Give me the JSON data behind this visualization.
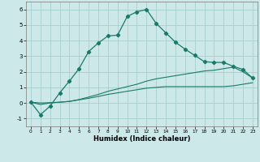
{
  "xlabel": "Humidex (Indice chaleur)",
  "xlim": [
    -0.5,
    23.5
  ],
  "ylim": [
    -1.5,
    6.5
  ],
  "yticks": [
    -1,
    0,
    1,
    2,
    3,
    4,
    5,
    6
  ],
  "xticks": [
    0,
    1,
    2,
    3,
    4,
    5,
    6,
    7,
    8,
    9,
    10,
    11,
    12,
    13,
    14,
    15,
    16,
    17,
    18,
    19,
    20,
    21,
    22,
    23
  ],
  "background_color": "#cde8e8",
  "grid_color": "#a8cece",
  "line_color": "#1a7a6a",
  "line1_x": [
    0,
    1,
    2,
    3,
    4,
    5,
    6,
    7,
    8,
    9,
    10,
    11,
    12,
    13,
    14,
    15,
    16,
    17,
    18,
    19,
    20,
    21,
    22,
    23
  ],
  "line1_y": [
    0.05,
    -0.75,
    -0.2,
    0.65,
    1.4,
    2.2,
    3.3,
    3.85,
    4.3,
    4.35,
    5.55,
    5.85,
    6.0,
    5.1,
    4.5,
    3.9,
    3.45,
    3.05,
    2.65,
    2.6,
    2.6,
    2.35,
    2.15,
    1.6
  ],
  "line2_x": [
    0,
    1,
    2,
    3,
    4,
    5,
    6,
    7,
    8,
    9,
    10,
    11,
    12,
    13,
    14,
    15,
    16,
    17,
    18,
    19,
    20,
    21,
    22,
    23
  ],
  "line2_y": [
    0.05,
    -0.1,
    0.0,
    0.05,
    0.1,
    0.2,
    0.3,
    0.42,
    0.55,
    0.65,
    0.75,
    0.85,
    0.95,
    1.0,
    1.05,
    1.05,
    1.05,
    1.05,
    1.05,
    1.05,
    1.05,
    1.1,
    1.2,
    1.3
  ],
  "line3_x": [
    0,
    1,
    2,
    3,
    4,
    5,
    6,
    7,
    8,
    9,
    10,
    11,
    12,
    13,
    14,
    15,
    16,
    17,
    18,
    19,
    20,
    21,
    22,
    23
  ],
  "line3_y": [
    0.05,
    0.0,
    0.02,
    0.05,
    0.1,
    0.22,
    0.38,
    0.55,
    0.75,
    0.9,
    1.05,
    1.2,
    1.4,
    1.55,
    1.65,
    1.75,
    1.85,
    1.95,
    2.05,
    2.1,
    2.2,
    2.3,
    2.0,
    1.6
  ]
}
